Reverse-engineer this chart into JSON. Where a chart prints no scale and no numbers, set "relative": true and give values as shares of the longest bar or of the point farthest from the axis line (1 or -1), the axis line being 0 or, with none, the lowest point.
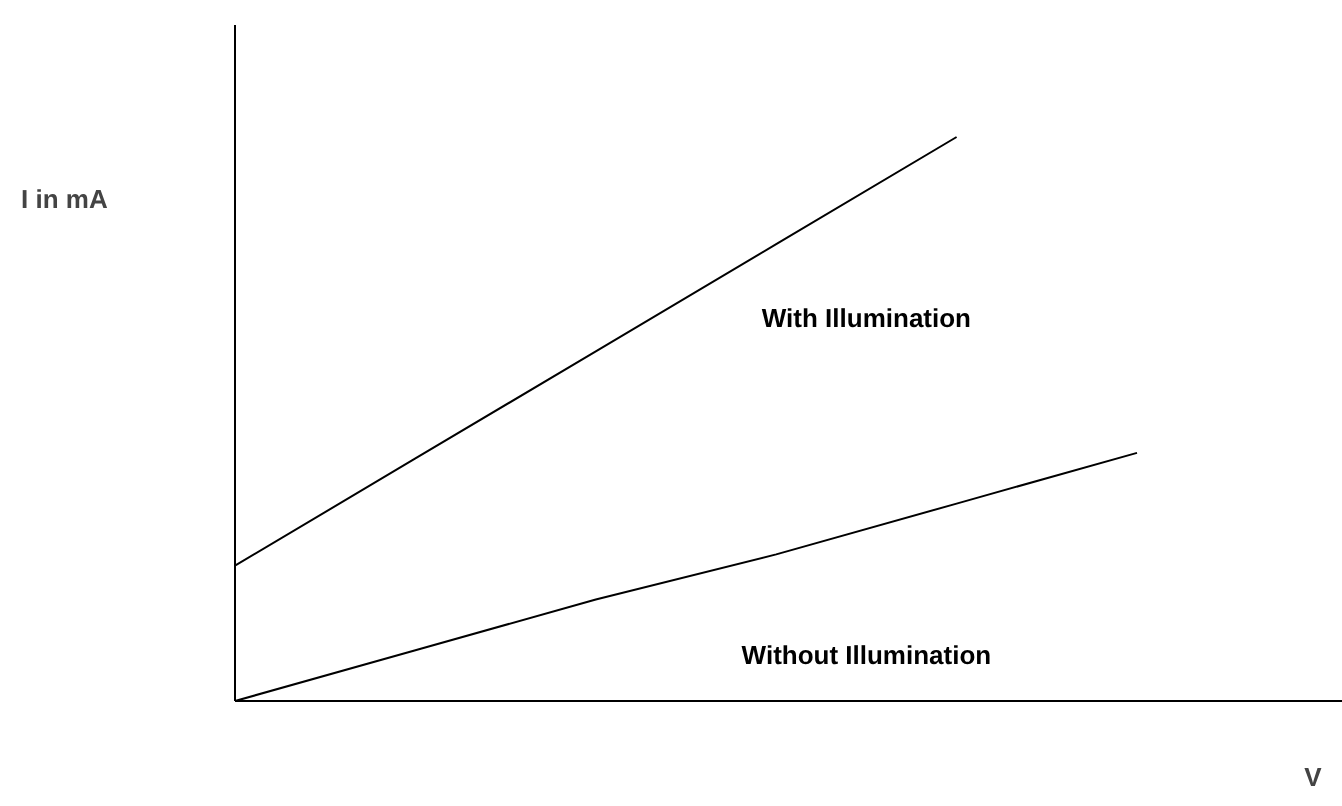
{
  "chart_data": {
    "type": "line",
    "relative": true,
    "ylabel": "I in mA",
    "xlabel": "V",
    "categories": [
      null,
      null,
      null,
      null,
      null,
      null
    ],
    "marker": "none",
    "line_style": "solid",
    "series": [
      {
        "name": "With Illumination",
        "color": "#000000",
        "values": [
          0.24,
          0.43,
          0.62,
          0.81,
          1,
          null
        ]
      },
      {
        "name": "Without Illumination",
        "color": "#000000",
        "values": [
          0,
          0.09,
          0.18,
          0.26,
          0.35,
          0.44
        ]
      }
    ]
  }
}
